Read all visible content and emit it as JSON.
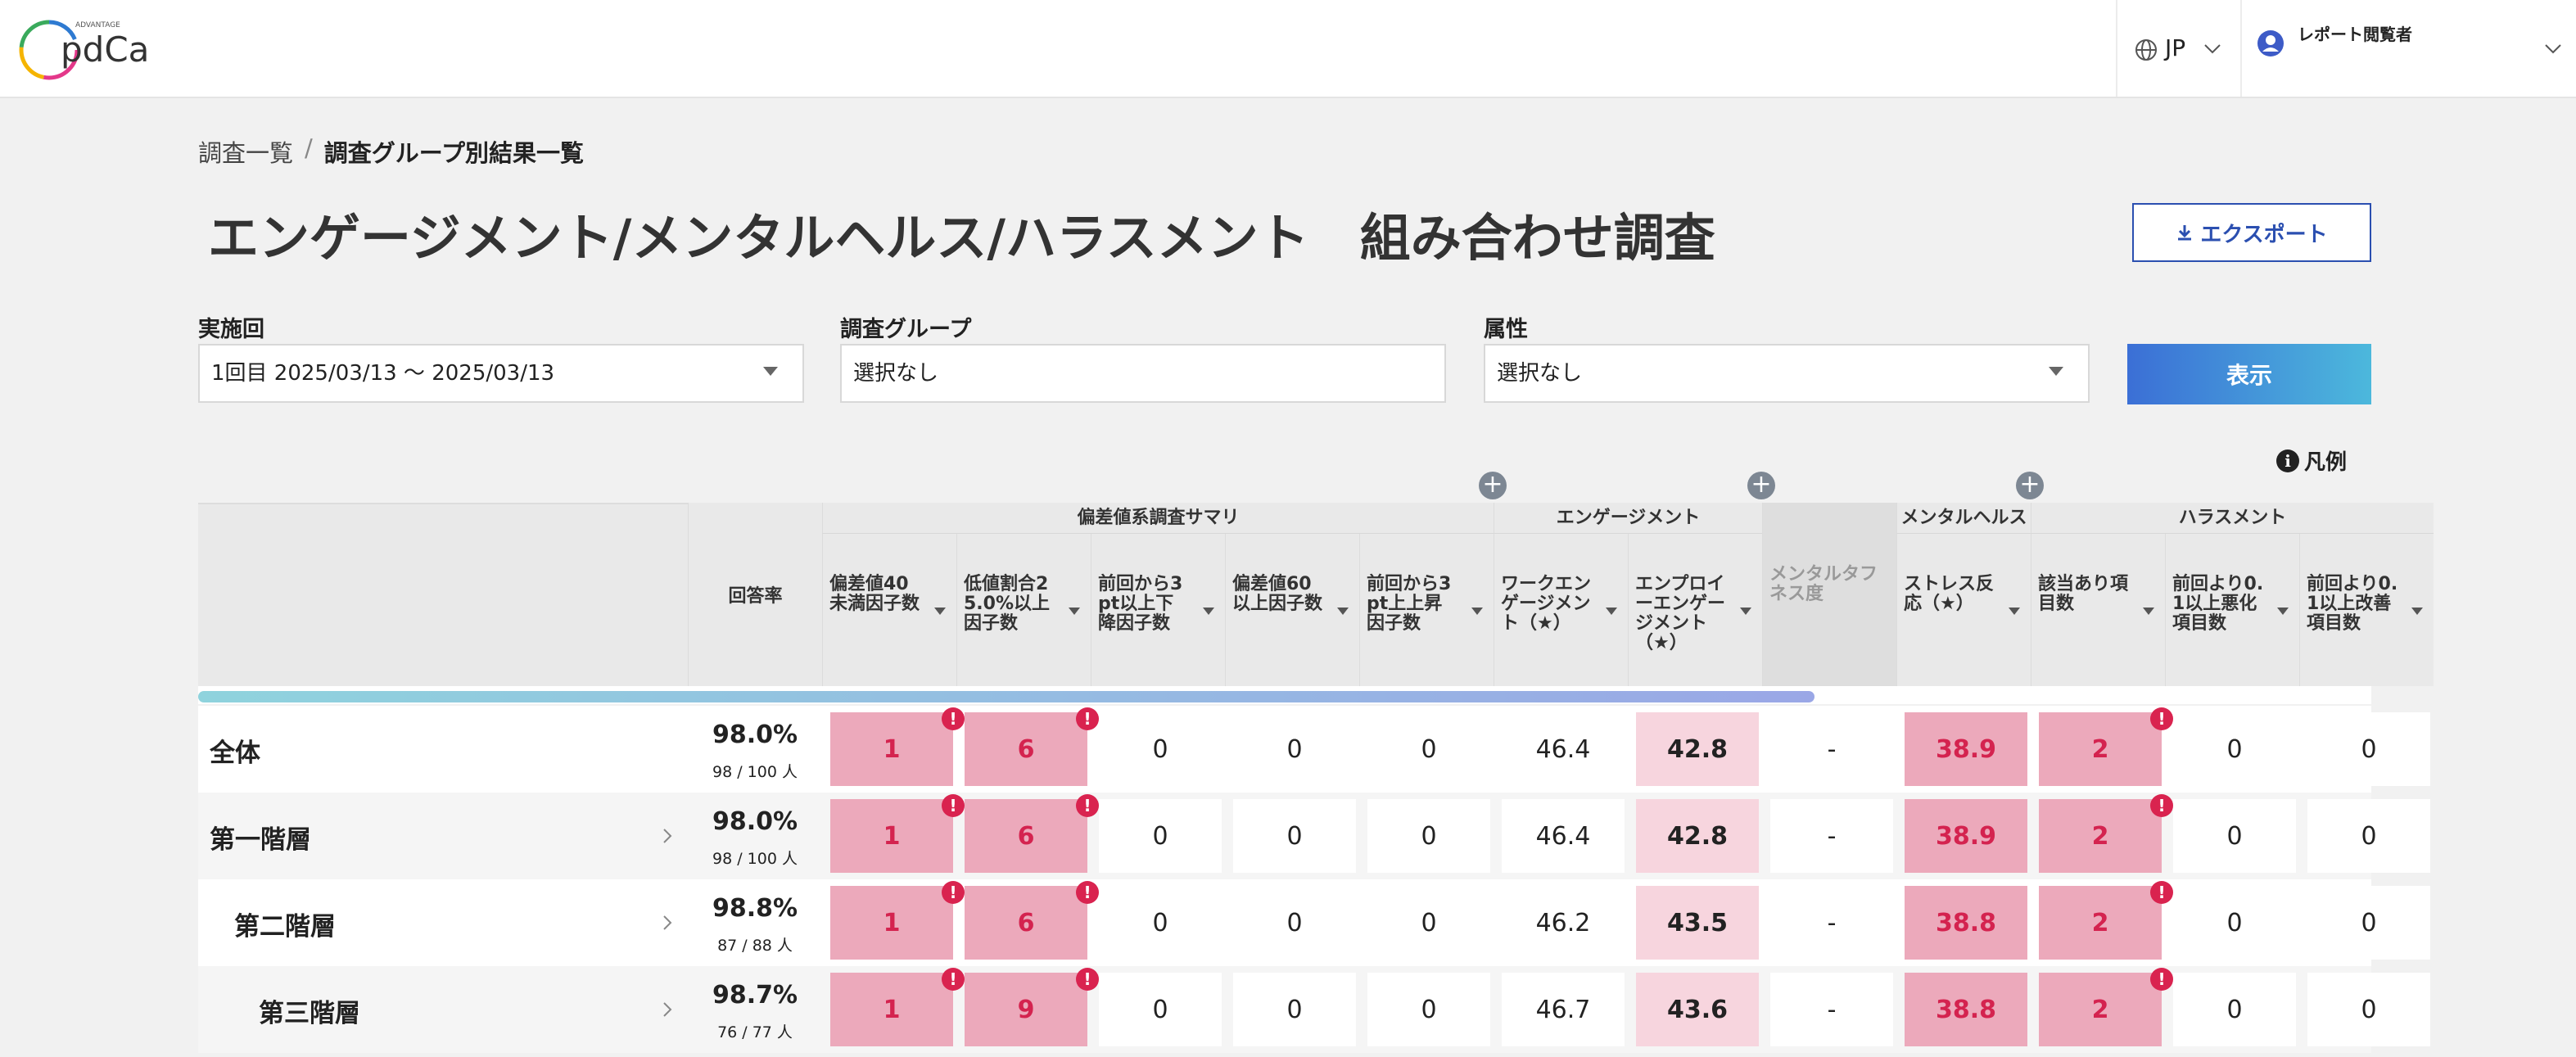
{
  "header": {
    "logo_small": "ADVANTAGE",
    "logo": "pdCa",
    "language": "JP",
    "user": "レポート閲覧者"
  },
  "breadcrumb": {
    "items": [
      "調査一覧",
      "調査グループ別結果一覧"
    ],
    "separator": "/"
  },
  "title": "エンゲージメント/メンタルヘルス/ハラスメント　組み合わせ調査",
  "export_button": "エクスポート",
  "filters": [
    {
      "label": "実施回",
      "value": "1回目 2025/03/13 ～ 2025/03/13"
    },
    {
      "label": "調査グループ",
      "value": "選択なし"
    },
    {
      "label": "属性",
      "value": "選択なし"
    }
  ],
  "show_button": "表示",
  "legend": "凡例",
  "table": {
    "groups": [
      "偏差値系調査サマリ",
      "エンゲージメント",
      "メンタルヘルス",
      "ハラスメント"
    ],
    "rate_header": "回答率",
    "columns": [
      "偏差値40未満因子数",
      "低値割合25.0%以上因子数",
      "前回から3pt以上下降因子数",
      "偏差値60以上因子数",
      "前回から3pt上上昇因子数",
      "ワークエンゲージメント（★）",
      "エンプロイーエンゲージメント（★）",
      "メンタルタフネス度",
      "ストレス反応（★）",
      "該当あり項目数",
      "前回より0.1以上悪化項目数",
      "前回より0.1以上改善項目数"
    ],
    "rows": [
      {
        "label": "全体",
        "rate": "98.0%",
        "count": "98 / 100 人",
        "values": [
          "1",
          "6",
          "0",
          "0",
          "0",
          "46.4",
          "42.8",
          "-",
          "38.9",
          "2",
          "0",
          "0"
        ]
      },
      {
        "label": "第一階層",
        "rate": "98.0%",
        "count": "98 / 100 人",
        "values": [
          "1",
          "6",
          "0",
          "0",
          "0",
          "46.4",
          "42.8",
          "-",
          "38.9",
          "2",
          "0",
          "0"
        ]
      },
      {
        "label": "第二階層",
        "rate": "98.8%",
        "count": "87 / 88 人",
        "values": [
          "1",
          "6",
          "0",
          "0",
          "0",
          "46.2",
          "43.5",
          "-",
          "38.8",
          "2",
          "0",
          "0"
        ]
      },
      {
        "label": "第三階層",
        "rate": "98.7%",
        "count": "76 / 77 人",
        "values": [
          "1",
          "9",
          "0",
          "0",
          "0",
          "46.7",
          "43.6",
          "-",
          "38.8",
          "2",
          "0",
          "0"
        ]
      }
    ]
  }
}
